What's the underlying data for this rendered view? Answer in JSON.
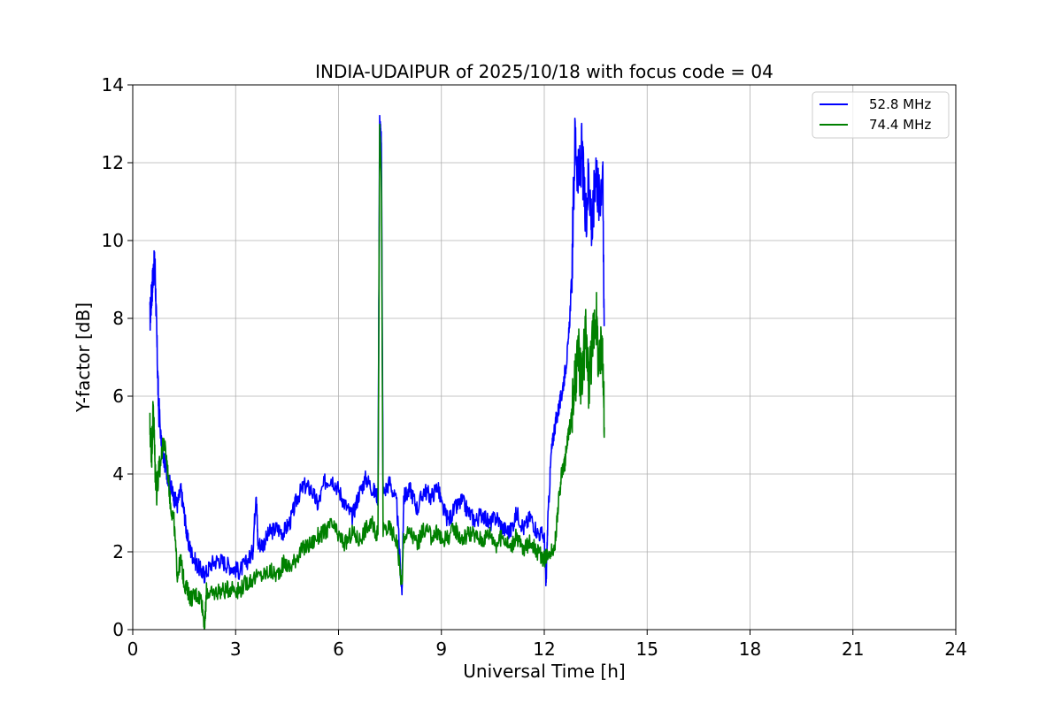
{
  "chart_data": {
    "type": "line",
    "title": "INDIA-UDAIPUR of 2025/10/18 with focus code = 04",
    "xlabel": "Universal Time [h]",
    "ylabel": "Y-factor [dB]",
    "xlim": [
      0,
      24
    ],
    "ylim": [
      0,
      14
    ],
    "xticks": [
      "0",
      "3",
      "6",
      "9",
      "12",
      "15",
      "18",
      "21",
      "24"
    ],
    "yticks": [
      "0",
      "2",
      "4",
      "6",
      "8",
      "10",
      "12",
      "14"
    ],
    "grid": true,
    "legend_position": "top-right",
    "series": [
      {
        "name": "52.8 MHz",
        "color": "#0000ff",
        "points": [
          [
            0.5,
            8.0
          ],
          [
            0.55,
            8.6
          ],
          [
            0.6,
            9.2
          ],
          [
            0.65,
            9.4
          ],
          [
            0.7,
            7.5
          ],
          [
            0.75,
            5.8
          ],
          [
            0.85,
            4.6
          ],
          [
            1.0,
            4.0
          ],
          [
            1.1,
            3.7
          ],
          [
            1.2,
            3.4
          ],
          [
            1.3,
            3.2
          ],
          [
            1.4,
            3.6
          ],
          [
            1.5,
            3.0
          ],
          [
            1.6,
            2.3
          ],
          [
            1.7,
            2.0
          ],
          [
            1.85,
            1.7
          ],
          [
            2.0,
            1.5
          ],
          [
            2.1,
            1.4
          ],
          [
            2.3,
            1.7
          ],
          [
            2.5,
            1.8
          ],
          [
            2.7,
            1.7
          ],
          [
            2.9,
            1.6
          ],
          [
            3.1,
            1.5
          ],
          [
            3.3,
            1.7
          ],
          [
            3.5,
            2.0
          ],
          [
            3.6,
            3.6
          ],
          [
            3.65,
            2.2
          ],
          [
            3.8,
            2.2
          ],
          [
            4.0,
            2.5
          ],
          [
            4.2,
            2.6
          ],
          [
            4.4,
            2.5
          ],
          [
            4.6,
            2.8
          ],
          [
            4.8,
            3.4
          ],
          [
            5.0,
            3.7
          ],
          [
            5.2,
            3.6
          ],
          [
            5.4,
            3.2
          ],
          [
            5.6,
            3.8
          ],
          [
            5.8,
            3.9
          ],
          [
            6.0,
            3.6
          ],
          [
            6.2,
            3.2
          ],
          [
            6.4,
            2.9
          ],
          [
            6.6,
            3.5
          ],
          [
            6.8,
            3.9
          ],
          [
            7.0,
            3.6
          ],
          [
            7.15,
            3.4
          ],
          [
            7.2,
            13.1
          ],
          [
            7.25,
            12.5
          ],
          [
            7.3,
            3.5
          ],
          [
            7.5,
            3.8
          ],
          [
            7.7,
            3.2
          ],
          [
            7.85,
            0.9
          ],
          [
            7.9,
            3.4
          ],
          [
            8.1,
            3.6
          ],
          [
            8.3,
            3.1
          ],
          [
            8.5,
            3.6
          ],
          [
            8.7,
            3.4
          ],
          [
            8.9,
            3.7
          ],
          [
            9.0,
            3.2
          ],
          [
            9.2,
            2.8
          ],
          [
            9.4,
            3.1
          ],
          [
            9.6,
            3.3
          ],
          [
            9.8,
            3.0
          ],
          [
            10.0,
            2.8
          ],
          [
            10.2,
            3.0
          ],
          [
            10.4,
            2.7
          ],
          [
            10.6,
            2.9
          ],
          [
            10.8,
            2.6
          ],
          [
            11.0,
            2.5
          ],
          [
            11.2,
            3.0
          ],
          [
            11.4,
            2.6
          ],
          [
            11.6,
            2.9
          ],
          [
            11.8,
            2.5
          ],
          [
            12.0,
            2.4
          ],
          [
            12.05,
            1.1
          ],
          [
            12.1,
            2.7
          ],
          [
            12.2,
            4.5
          ],
          [
            12.3,
            5.2
          ],
          [
            12.4,
            5.6
          ],
          [
            12.5,
            6.0
          ],
          [
            12.6,
            6.6
          ],
          [
            12.7,
            7.3
          ],
          [
            12.8,
            9.0
          ],
          [
            12.9,
            12.8
          ],
          [
            13.0,
            11.5
          ],
          [
            13.1,
            12.3
          ],
          [
            13.2,
            10.5
          ],
          [
            13.3,
            11.8
          ],
          [
            13.4,
            10.2
          ],
          [
            13.5,
            12.0
          ],
          [
            13.6,
            11.0
          ],
          [
            13.7,
            11.9
          ],
          [
            13.75,
            7.8
          ]
        ]
      },
      {
        "name": "74.4 MHz",
        "color": "#008000",
        "points": [
          [
            0.5,
            5.2
          ],
          [
            0.55,
            4.5
          ],
          [
            0.6,
            5.8
          ],
          [
            0.65,
            4.2
          ],
          [
            0.7,
            3.6
          ],
          [
            0.8,
            4.2
          ],
          [
            0.9,
            4.9
          ],
          [
            1.0,
            4.3
          ],
          [
            1.1,
            3.2
          ],
          [
            1.2,
            2.8
          ],
          [
            1.3,
            1.4
          ],
          [
            1.4,
            1.8
          ],
          [
            1.5,
            1.2
          ],
          [
            1.6,
            1.0
          ],
          [
            1.7,
            0.8
          ],
          [
            1.85,
            0.9
          ],
          [
            2.0,
            0.8
          ],
          [
            2.1,
            0.05
          ],
          [
            2.15,
            1.0
          ],
          [
            2.3,
            0.9
          ],
          [
            2.5,
            1.0
          ],
          [
            2.7,
            1.0
          ],
          [
            2.9,
            1.1
          ],
          [
            3.1,
            1.0
          ],
          [
            3.3,
            1.2
          ],
          [
            3.5,
            1.3
          ],
          [
            3.8,
            1.4
          ],
          [
            4.0,
            1.5
          ],
          [
            4.2,
            1.4
          ],
          [
            4.4,
            1.7
          ],
          [
            4.6,
            1.6
          ],
          [
            4.8,
            1.9
          ],
          [
            5.0,
            2.1
          ],
          [
            5.2,
            2.2
          ],
          [
            5.4,
            2.4
          ],
          [
            5.6,
            2.5
          ],
          [
            5.8,
            2.7
          ],
          [
            6.0,
            2.4
          ],
          [
            6.2,
            2.2
          ],
          [
            6.4,
            2.5
          ],
          [
            6.6,
            2.3
          ],
          [
            6.8,
            2.6
          ],
          [
            7.0,
            2.7
          ],
          [
            7.15,
            2.4
          ],
          [
            7.2,
            12.9
          ],
          [
            7.25,
            11.6
          ],
          [
            7.3,
            2.6
          ],
          [
            7.5,
            2.6
          ],
          [
            7.7,
            2.3
          ],
          [
            7.85,
            1.1
          ],
          [
            7.9,
            2.4
          ],
          [
            8.1,
            2.5
          ],
          [
            8.3,
            2.2
          ],
          [
            8.5,
            2.6
          ],
          [
            8.7,
            2.4
          ],
          [
            8.9,
            2.5
          ],
          [
            9.0,
            2.3
          ],
          [
            9.2,
            2.4
          ],
          [
            9.4,
            2.6
          ],
          [
            9.6,
            2.3
          ],
          [
            9.8,
            2.5
          ],
          [
            10.0,
            2.4
          ],
          [
            10.2,
            2.3
          ],
          [
            10.4,
            2.5
          ],
          [
            10.6,
            2.2
          ],
          [
            10.8,
            2.4
          ],
          [
            11.0,
            2.1
          ],
          [
            11.2,
            2.4
          ],
          [
            11.4,
            2.0
          ],
          [
            11.6,
            2.3
          ],
          [
            11.8,
            2.0
          ],
          [
            12.0,
            1.8
          ],
          [
            12.1,
            2.0
          ],
          [
            12.3,
            2.1
          ],
          [
            12.4,
            3.1
          ],
          [
            12.5,
            4.0
          ],
          [
            12.6,
            4.3
          ],
          [
            12.7,
            5.0
          ],
          [
            12.8,
            5.5
          ],
          [
            12.9,
            6.3
          ],
          [
            13.0,
            7.0
          ],
          [
            13.1,
            6.2
          ],
          [
            13.2,
            7.6
          ],
          [
            13.3,
            6.4
          ],
          [
            13.4,
            7.3
          ],
          [
            13.5,
            8.3
          ],
          [
            13.6,
            6.6
          ],
          [
            13.7,
            7.4
          ],
          [
            13.75,
            5.2
          ]
        ]
      }
    ]
  }
}
